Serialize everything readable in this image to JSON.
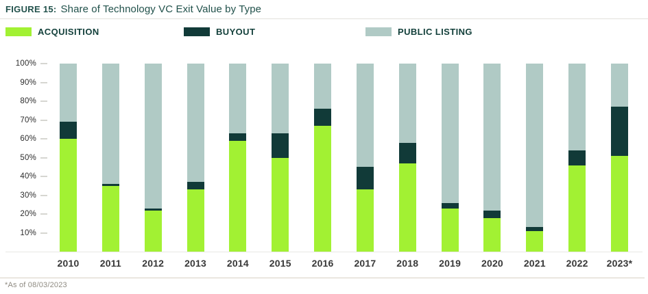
{
  "figure": {
    "label": "FIGURE 15:",
    "title": "Share of Technology VC Exit Value by Type",
    "footnote": "*As of 08/03/2023"
  },
  "legend": [
    {
      "label": "ACQUISITION",
      "color": "#a2f133"
    },
    {
      "label": "BUYOUT",
      "color": "#113a38"
    },
    {
      "label": "PUBLIC LISTING",
      "color": "#b0cac5"
    }
  ],
  "chart_data": {
    "type": "bar",
    "stacked": true,
    "unit": "percent",
    "title": "Share of Technology VC Exit Value by Type",
    "categories": [
      "2010",
      "2011",
      "2012",
      "2013",
      "2014",
      "2015",
      "2016",
      "2017",
      "2018",
      "2019",
      "2020",
      "2021",
      "2022",
      "2023*"
    ],
    "series": [
      {
        "name": "ACQUISITION",
        "color": "#a2f133",
        "values": [
          60,
          35,
          22,
          33,
          59,
          50,
          67,
          33,
          47,
          23,
          18,
          11,
          46,
          51
        ]
      },
      {
        "name": "BUYOUT",
        "color": "#113a38",
        "values": [
          9,
          1,
          1,
          4,
          4,
          13,
          9,
          12,
          11,
          3,
          4,
          2,
          8,
          26
        ]
      },
      {
        "name": "PUBLIC LISTING",
        "color": "#b0cac5",
        "values": [
          31,
          64,
          77,
          63,
          37,
          37,
          24,
          55,
          42,
          74,
          78,
          87,
          46,
          23
        ]
      }
    ],
    "y_ticks": [
      "100%",
      "90%",
      "80%",
      "70%",
      "60%",
      "50%",
      "40%",
      "30%",
      "20%",
      "10%"
    ],
    "ylim": [
      0,
      100
    ],
    "grid": false,
    "legend_position": "top"
  }
}
